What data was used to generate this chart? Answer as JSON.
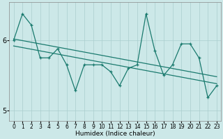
{
  "xlabel": "Humidex (Indice chaleur)",
  "bg_color": "#cce8e8",
  "line_color": "#1a7a6e",
  "x_data": [
    0,
    1,
    2,
    3,
    4,
    5,
    6,
    7,
    8,
    9,
    10,
    11,
    12,
    13,
    14,
    15,
    16,
    17,
    18,
    19,
    20,
    21,
    22,
    23
  ],
  "y_main": [
    6.0,
    6.38,
    6.22,
    5.75,
    5.75,
    5.88,
    5.65,
    5.28,
    5.65,
    5.65,
    5.65,
    5.55,
    5.35,
    5.6,
    5.65,
    6.38,
    5.85,
    5.5,
    5.65,
    5.95,
    5.95,
    5.75,
    5.18,
    5.35
  ],
  "trend1_start": 6.02,
  "trend1_end": 5.48,
  "trend2_start": 5.92,
  "trend2_end": 5.38,
  "ylim": [
    4.85,
    6.55
  ],
  "yticks": [
    5,
    6
  ],
  "xlim": [
    -0.5,
    23.5
  ],
  "grid_color": "#aacece",
  "xlabel_fontsize": 6.5,
  "tick_fontsize": 5.5
}
